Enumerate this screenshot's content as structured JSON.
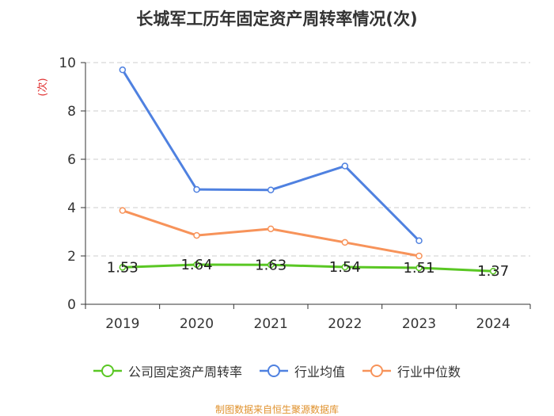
{
  "chart_data": {
    "type": "line",
    "title": "长城军工历年固定资产周转率情况(次)",
    "ylabel": "(次)",
    "ylim": [
      0,
      10
    ],
    "yticks": [
      0,
      2,
      4,
      6,
      8,
      10
    ],
    "categories": [
      "2019",
      "2020",
      "2021",
      "2022",
      "2023",
      "2024"
    ],
    "series": [
      {
        "name": "公司固定资产周转率",
        "color": "#5ac724",
        "values": [
          1.53,
          1.64,
          1.63,
          1.54,
          1.51,
          1.37
        ],
        "labels": [
          "1.53",
          "1.64",
          "1.63",
          "1.54",
          "1.51",
          "1.37"
        ]
      },
      {
        "name": "行业均值",
        "color": "#4f81e0",
        "values": [
          9.7,
          4.75,
          4.73,
          5.72,
          2.63,
          null
        ]
      },
      {
        "name": "行业中位数",
        "color": "#f7935a",
        "values": [
          3.88,
          2.85,
          3.12,
          2.56,
          2.0,
          null
        ]
      }
    ],
    "grid": true,
    "legend_position": "bottom"
  },
  "source": "制图数据来自恒生聚源数据库",
  "colors": {
    "ylabel": "#e03030",
    "source": "#e0922e",
    "grid": "#cccccc",
    "axis": "#333333"
  }
}
